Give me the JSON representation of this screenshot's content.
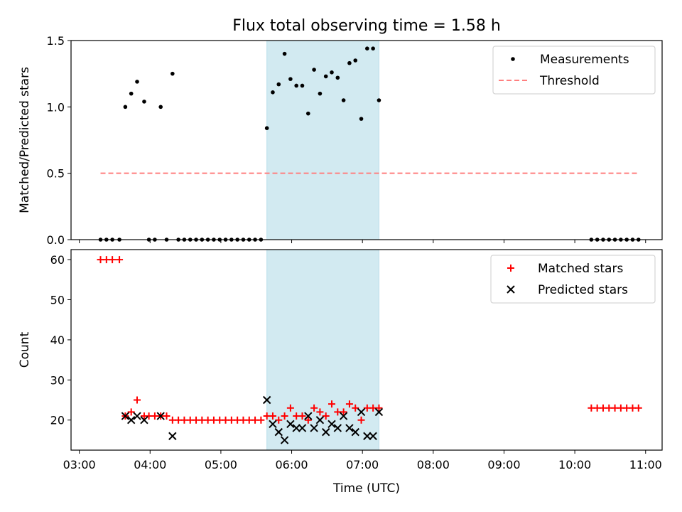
{
  "title": "Flux total observing time = 1.58 h",
  "xlabel": "Time (UTC)",
  "x_ticks": [
    "03:00",
    "04:00",
    "05:00",
    "06:00",
    "07:00",
    "08:00",
    "09:00",
    "10:00",
    "11:00"
  ],
  "highlight": {
    "start": "05:39",
    "end": "07:14",
    "color": "#add8e6"
  },
  "chart_data": [
    {
      "type": "scatter",
      "ylabel": "Matched/Predicted stars",
      "ylim": [
        0,
        1.5
      ],
      "y_ticks": [
        "0.0",
        "0.5",
        "1.0",
        "1.5"
      ],
      "legend": {
        "placement": "top-right",
        "entries": [
          "Measurements",
          "Threshold"
        ]
      },
      "series": [
        {
          "name": "Measurements",
          "marker": "dot",
          "color": "#000000",
          "points": [
            [
              "03:18",
              0
            ],
            [
              "03:23",
              0
            ],
            [
              "03:28",
              0
            ],
            [
              "03:34",
              0
            ],
            [
              "03:39",
              1.0
            ],
            [
              "03:44",
              1.1
            ],
            [
              "03:49",
              1.19
            ],
            [
              "03:55",
              1.04
            ],
            [
              "03:59",
              0
            ],
            [
              "04:04",
              0
            ],
            [
              "04:09",
              1.0
            ],
            [
              "04:14",
              0
            ],
            [
              "04:19",
              1.25
            ],
            [
              "04:24",
              0
            ],
            [
              "04:29",
              0
            ],
            [
              "04:34",
              0
            ],
            [
              "04:39",
              0
            ],
            [
              "04:44",
              0
            ],
            [
              "04:49",
              0
            ],
            [
              "04:54",
              0
            ],
            [
              "04:59",
              0
            ],
            [
              "05:04",
              0
            ],
            [
              "05:09",
              0
            ],
            [
              "05:14",
              0
            ],
            [
              "05:19",
              0
            ],
            [
              "05:24",
              0
            ],
            [
              "05:29",
              0
            ],
            [
              "05:34",
              0
            ],
            [
              "05:39",
              0.84
            ],
            [
              "05:44",
              1.11
            ],
            [
              "05:49",
              1.17
            ],
            [
              "05:54",
              1.4
            ],
            [
              "05:59",
              1.21
            ],
            [
              "06:04",
              1.16
            ],
            [
              "06:09",
              1.16
            ],
            [
              "06:14",
              0.95
            ],
            [
              "06:19",
              1.28
            ],
            [
              "06:24",
              1.1
            ],
            [
              "06:29",
              1.23
            ],
            [
              "06:34",
              1.26
            ],
            [
              "06:39",
              1.22
            ],
            [
              "06:44",
              1.05
            ],
            [
              "06:49",
              1.33
            ],
            [
              "06:54",
              1.35
            ],
            [
              "06:59",
              0.91
            ],
            [
              "07:04",
              1.44
            ],
            [
              "07:09",
              1.44
            ],
            [
              "07:14",
              1.05
            ],
            [
              "10:14",
              0
            ],
            [
              "10:19",
              0
            ],
            [
              "10:24",
              0
            ],
            [
              "10:29",
              0
            ],
            [
              "10:34",
              0
            ],
            [
              "10:39",
              0
            ],
            [
              "10:44",
              0
            ],
            [
              "10:49",
              0
            ],
            [
              "10:54",
              0
            ]
          ]
        },
        {
          "name": "Threshold",
          "marker": "dashed-line",
          "color": "#ff7f7f",
          "x": [
            "03:18",
            "10:54"
          ],
          "y": 0.5
        }
      ]
    },
    {
      "type": "scatter",
      "ylabel": "Count",
      "ylim": [
        12.5,
        62.5
      ],
      "y_ticks": [
        "20",
        "30",
        "40",
        "50",
        "60"
      ],
      "legend": {
        "placement": "top-right",
        "entries": [
          "Matched stars",
          "Predicted stars"
        ]
      },
      "series": [
        {
          "name": "Matched stars",
          "marker": "plus",
          "color": "#ff0000",
          "points": [
            [
              "03:18",
              60
            ],
            [
              "03:23",
              60
            ],
            [
              "03:28",
              60
            ],
            [
              "03:34",
              60
            ],
            [
              "03:39",
              21
            ],
            [
              "03:44",
              22
            ],
            [
              "03:49",
              25
            ],
            [
              "03:55",
              21
            ],
            [
              "03:59",
              21
            ],
            [
              "04:04",
              21
            ],
            [
              "04:09",
              21
            ],
            [
              "04:14",
              21
            ],
            [
              "04:19",
              20
            ],
            [
              "04:24",
              20
            ],
            [
              "04:29",
              20
            ],
            [
              "04:34",
              20
            ],
            [
              "04:39",
              20
            ],
            [
              "04:44",
              20
            ],
            [
              "04:49",
              20
            ],
            [
              "04:54",
              20
            ],
            [
              "04:59",
              20
            ],
            [
              "05:04",
              20
            ],
            [
              "05:09",
              20
            ],
            [
              "05:14",
              20
            ],
            [
              "05:19",
              20
            ],
            [
              "05:24",
              20
            ],
            [
              "05:29",
              20
            ],
            [
              "05:34",
              20
            ],
            [
              "05:39",
              21
            ],
            [
              "05:44",
              21
            ],
            [
              "05:49",
              20
            ],
            [
              "05:54",
              21
            ],
            [
              "05:59",
              23
            ],
            [
              "06:04",
              21
            ],
            [
              "06:09",
              21
            ],
            [
              "06:14",
              20
            ],
            [
              "06:19",
              23
            ],
            [
              "06:24",
              22
            ],
            [
              "06:29",
              21
            ],
            [
              "06:34",
              24
            ],
            [
              "06:39",
              22
            ],
            [
              "06:44",
              22
            ],
            [
              "06:49",
              24
            ],
            [
              "06:54",
              23
            ],
            [
              "06:59",
              20
            ],
            [
              "07:04",
              23
            ],
            [
              "07:09",
              23
            ],
            [
              "07:14",
              23
            ],
            [
              "10:14",
              23
            ],
            [
              "10:19",
              23
            ],
            [
              "10:24",
              23
            ],
            [
              "10:29",
              23
            ],
            [
              "10:34",
              23
            ],
            [
              "10:39",
              23
            ],
            [
              "10:44",
              23
            ],
            [
              "10:49",
              23
            ],
            [
              "10:54",
              23
            ]
          ]
        },
        {
          "name": "Predicted stars",
          "marker": "x",
          "color": "#000000",
          "points": [
            [
              "03:39",
              21
            ],
            [
              "03:44",
              20
            ],
            [
              "03:49",
              21
            ],
            [
              "03:55",
              20
            ],
            [
              "04:09",
              21
            ],
            [
              "04:19",
              16
            ],
            [
              "05:39",
              25
            ],
            [
              "05:44",
              19
            ],
            [
              "05:49",
              17
            ],
            [
              "05:54",
              15
            ],
            [
              "05:59",
              19
            ],
            [
              "06:04",
              18
            ],
            [
              "06:09",
              18
            ],
            [
              "06:14",
              21
            ],
            [
              "06:19",
              18
            ],
            [
              "06:24",
              20
            ],
            [
              "06:29",
              17
            ],
            [
              "06:34",
              19
            ],
            [
              "06:39",
              18
            ],
            [
              "06:44",
              21
            ],
            [
              "06:49",
              18
            ],
            [
              "06:54",
              17
            ],
            [
              "06:59",
              22
            ],
            [
              "07:04",
              16
            ],
            [
              "07:09",
              16
            ],
            [
              "07:14",
              22
            ]
          ]
        }
      ]
    }
  ]
}
